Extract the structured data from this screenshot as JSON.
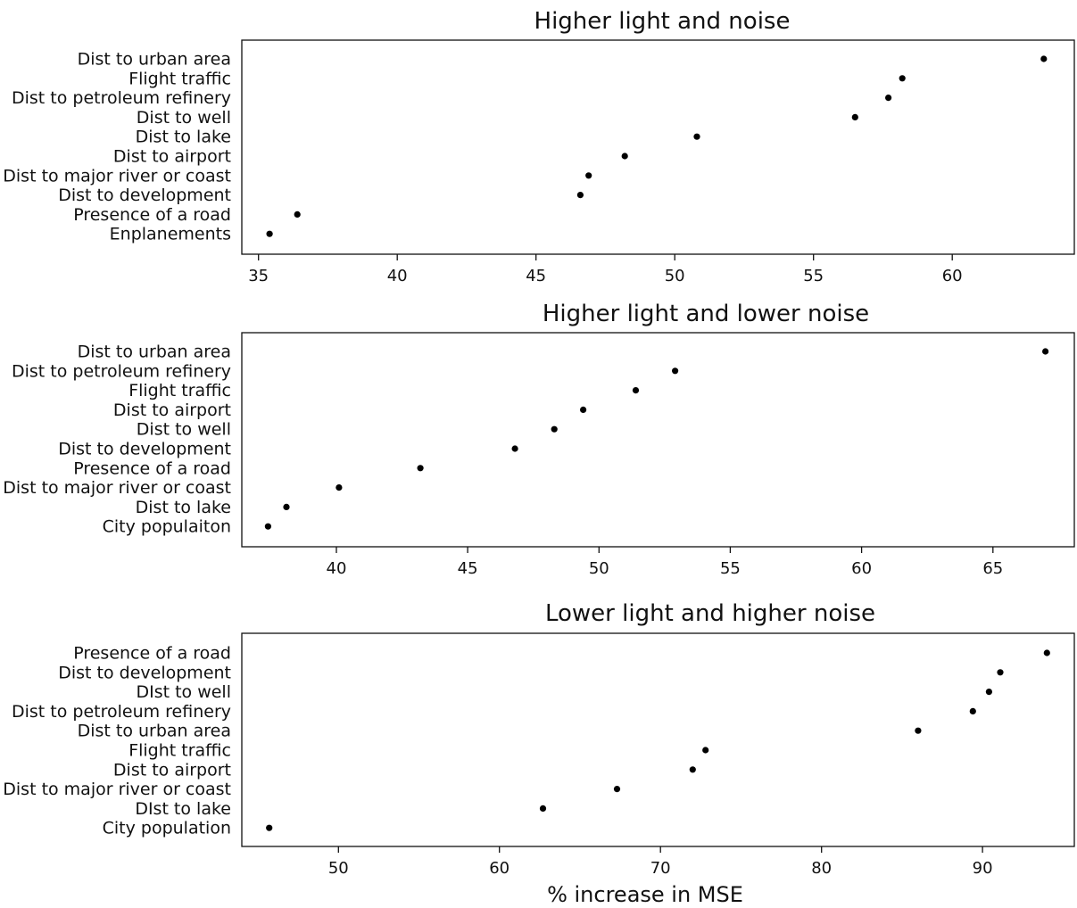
{
  "chart_data": [
    {
      "type": "scatter",
      "title": "Higher light and noise",
      "categories": [
        "Dist to urban area",
        "Flight traffic",
        "Dist to petroleum refinery",
        "Dist to well",
        "Dist to lake",
        "Dist to airport",
        "Dist to major river or coast",
        "Dist to development",
        "Presence of a road",
        "Enplanements"
      ],
      "values": [
        63.3,
        58.2,
        57.7,
        56.5,
        50.8,
        48.2,
        46.9,
        46.6,
        36.4,
        35.4
      ],
      "xlim": [
        34.4,
        64.4
      ],
      "xticks": [
        35,
        40,
        45,
        50,
        55,
        60
      ],
      "xlabel": "",
      "grid": false
    },
    {
      "type": "scatter",
      "title": "Higher light and lower noise",
      "categories": [
        "Dist to urban area",
        "Dist to petroleum refinery",
        "Flight traffic",
        "Dist to airport",
        "Dist to well",
        "Dist to development",
        "Presence of a road",
        "Dist to major river or coast",
        "Dist to lake",
        "City populaiton"
      ],
      "values": [
        67.0,
        52.9,
        51.4,
        49.4,
        48.3,
        46.8,
        43.2,
        40.1,
        38.1,
        37.4
      ],
      "xlim": [
        36.4,
        68.1
      ],
      "xticks": [
        40,
        45,
        50,
        55,
        60,
        65
      ],
      "xlabel": "",
      "grid": false
    },
    {
      "type": "scatter",
      "title": "Lower light and higher noise",
      "categories": [
        "Presence of a road",
        "Dist to development",
        "DIst to well",
        "Dist to petroleum refinery",
        "Dist to urban area",
        "Flight traffic",
        "Dist to airport",
        "Dist to major river or coast",
        "DIst to lake",
        "City population"
      ],
      "values": [
        94.0,
        91.1,
        90.4,
        89.4,
        86.0,
        72.8,
        72.0,
        67.3,
        62.7,
        45.7
      ],
      "xlim": [
        44.0,
        95.7
      ],
      "xticks": [
        50,
        60,
        70,
        80,
        90
      ],
      "xlabel": "% increase in MSE",
      "grid": false
    }
  ]
}
